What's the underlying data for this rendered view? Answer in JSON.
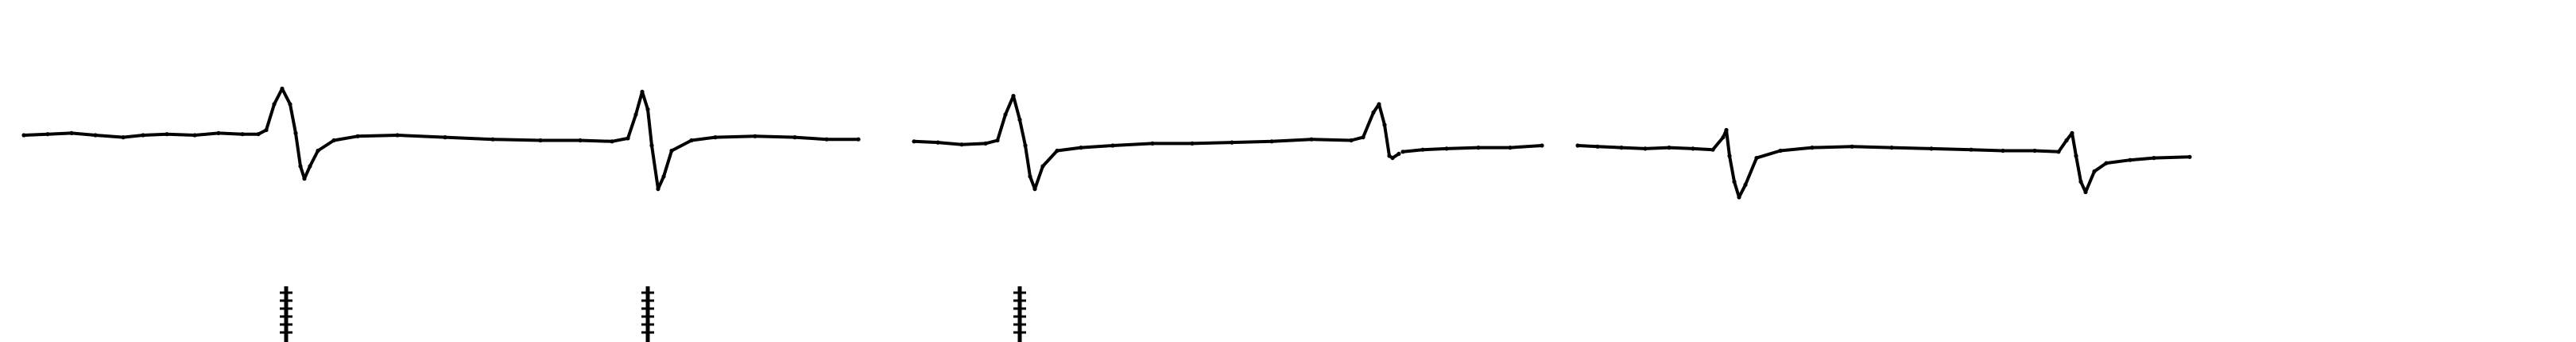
{
  "chart_data": {
    "type": "line",
    "title": "",
    "xlabel": "",
    "ylabel": "",
    "grid": false,
    "legend": "none",
    "trace_color": "#000000",
    "xlim": [
      0,
      3241
    ],
    "ylim": [
      -1.0,
      1.0
    ],
    "baseline": 0,
    "segments": [
      {
        "points": [
          [
            30,
            0.0
          ],
          [
            60,
            0.01
          ],
          [
            90,
            0.02
          ],
          [
            120,
            0.0
          ],
          [
            155,
            -0.02
          ],
          [
            180,
            0.0
          ],
          [
            210,
            0.01
          ],
          [
            245,
            0.0
          ],
          [
            275,
            0.02
          ],
          [
            305,
            0.01
          ],
          [
            325,
            0.01
          ],
          [
            335,
            0.05
          ],
          [
            345,
            0.3
          ],
          [
            355,
            0.45
          ],
          [
            365,
            0.3
          ],
          [
            372,
            0.02
          ],
          [
            378,
            -0.3
          ],
          [
            383,
            -0.42
          ],
          [
            390,
            -0.3
          ],
          [
            400,
            -0.15
          ],
          [
            420,
            -0.05
          ],
          [
            450,
            -0.01
          ],
          [
            500,
            0.0
          ],
          [
            560,
            -0.02
          ],
          [
            620,
            -0.04
          ],
          [
            680,
            -0.05
          ],
          [
            730,
            -0.05
          ],
          [
            770,
            -0.06
          ],
          [
            790,
            -0.03
          ],
          [
            800,
            0.2
          ],
          [
            808,
            0.42
          ],
          [
            815,
            0.25
          ],
          [
            820,
            -0.1
          ],
          [
            828,
            -0.52
          ],
          [
            835,
            -0.4
          ],
          [
            845,
            -0.15
          ],
          [
            870,
            -0.05
          ],
          [
            900,
            -0.02
          ],
          [
            950,
            -0.01
          ],
          [
            1000,
            -0.02
          ],
          [
            1040,
            -0.04
          ],
          [
            1080,
            -0.04
          ]
        ]
      },
      {
        "points": [
          [
            1150,
            -0.06
          ],
          [
            1180,
            -0.07
          ],
          [
            1210,
            -0.09
          ],
          [
            1240,
            -0.08
          ],
          [
            1255,
            -0.05
          ],
          [
            1265,
            0.2
          ],
          [
            1275,
            0.38
          ],
          [
            1283,
            0.15
          ],
          [
            1290,
            -0.1
          ],
          [
            1296,
            -0.4
          ],
          [
            1302,
            -0.52
          ],
          [
            1312,
            -0.3
          ],
          [
            1330,
            -0.15
          ],
          [
            1360,
            -0.12
          ],
          [
            1400,
            -0.1
          ],
          [
            1450,
            -0.08
          ],
          [
            1500,
            -0.08
          ],
          [
            1550,
            -0.07
          ],
          [
            1600,
            -0.06
          ],
          [
            1650,
            -0.04
          ],
          [
            1700,
            -0.05
          ],
          [
            1715,
            -0.02
          ],
          [
            1728,
            0.22
          ],
          [
            1735,
            0.3
          ],
          [
            1742,
            0.1
          ],
          [
            1748,
            -0.2
          ],
          [
            1752,
            -0.22
          ],
          [
            1760,
            -0.18
          ]
        ]
      },
      {
        "points": [
          [
            1765,
            -0.16
          ],
          [
            1790,
            -0.14
          ],
          [
            1820,
            -0.13
          ],
          [
            1860,
            -0.12
          ],
          [
            1900,
            -0.12
          ],
          [
            1940,
            -0.1
          ]
        ]
      },
      {
        "points": [
          [
            1985,
            -0.1
          ],
          [
            2010,
            -0.11
          ],
          [
            2040,
            -0.12
          ],
          [
            2070,
            -0.13
          ],
          [
            2100,
            -0.12
          ],
          [
            2130,
            -0.13
          ],
          [
            2155,
            -0.14
          ],
          [
            2168,
            -0.02
          ],
          [
            2172,
            0.05
          ],
          [
            2176,
            -0.2
          ],
          [
            2182,
            -0.45
          ],
          [
            2188,
            -0.6
          ],
          [
            2196,
            -0.48
          ],
          [
            2210,
            -0.22
          ],
          [
            2240,
            -0.15
          ],
          [
            2280,
            -0.12
          ],
          [
            2330,
            -0.11
          ],
          [
            2380,
            -0.12
          ],
          [
            2430,
            -0.13
          ],
          [
            2480,
            -0.14
          ],
          [
            2520,
            -0.15
          ],
          [
            2560,
            -0.15
          ],
          [
            2590,
            -0.16
          ],
          [
            2600,
            -0.05
          ],
          [
            2607,
            0.02
          ],
          [
            2612,
            -0.2
          ],
          [
            2618,
            -0.45
          ],
          [
            2624,
            -0.55
          ],
          [
            2635,
            -0.35
          ],
          [
            2650,
            -0.27
          ],
          [
            2680,
            -0.24
          ],
          [
            2710,
            -0.22
          ],
          [
            2755,
            -0.21
          ]
        ]
      }
    ],
    "markers": [
      {
        "x": 360,
        "label": ""
      },
      {
        "x": 815,
        "label": ""
      },
      {
        "x": 1283,
        "label": ""
      }
    ]
  }
}
